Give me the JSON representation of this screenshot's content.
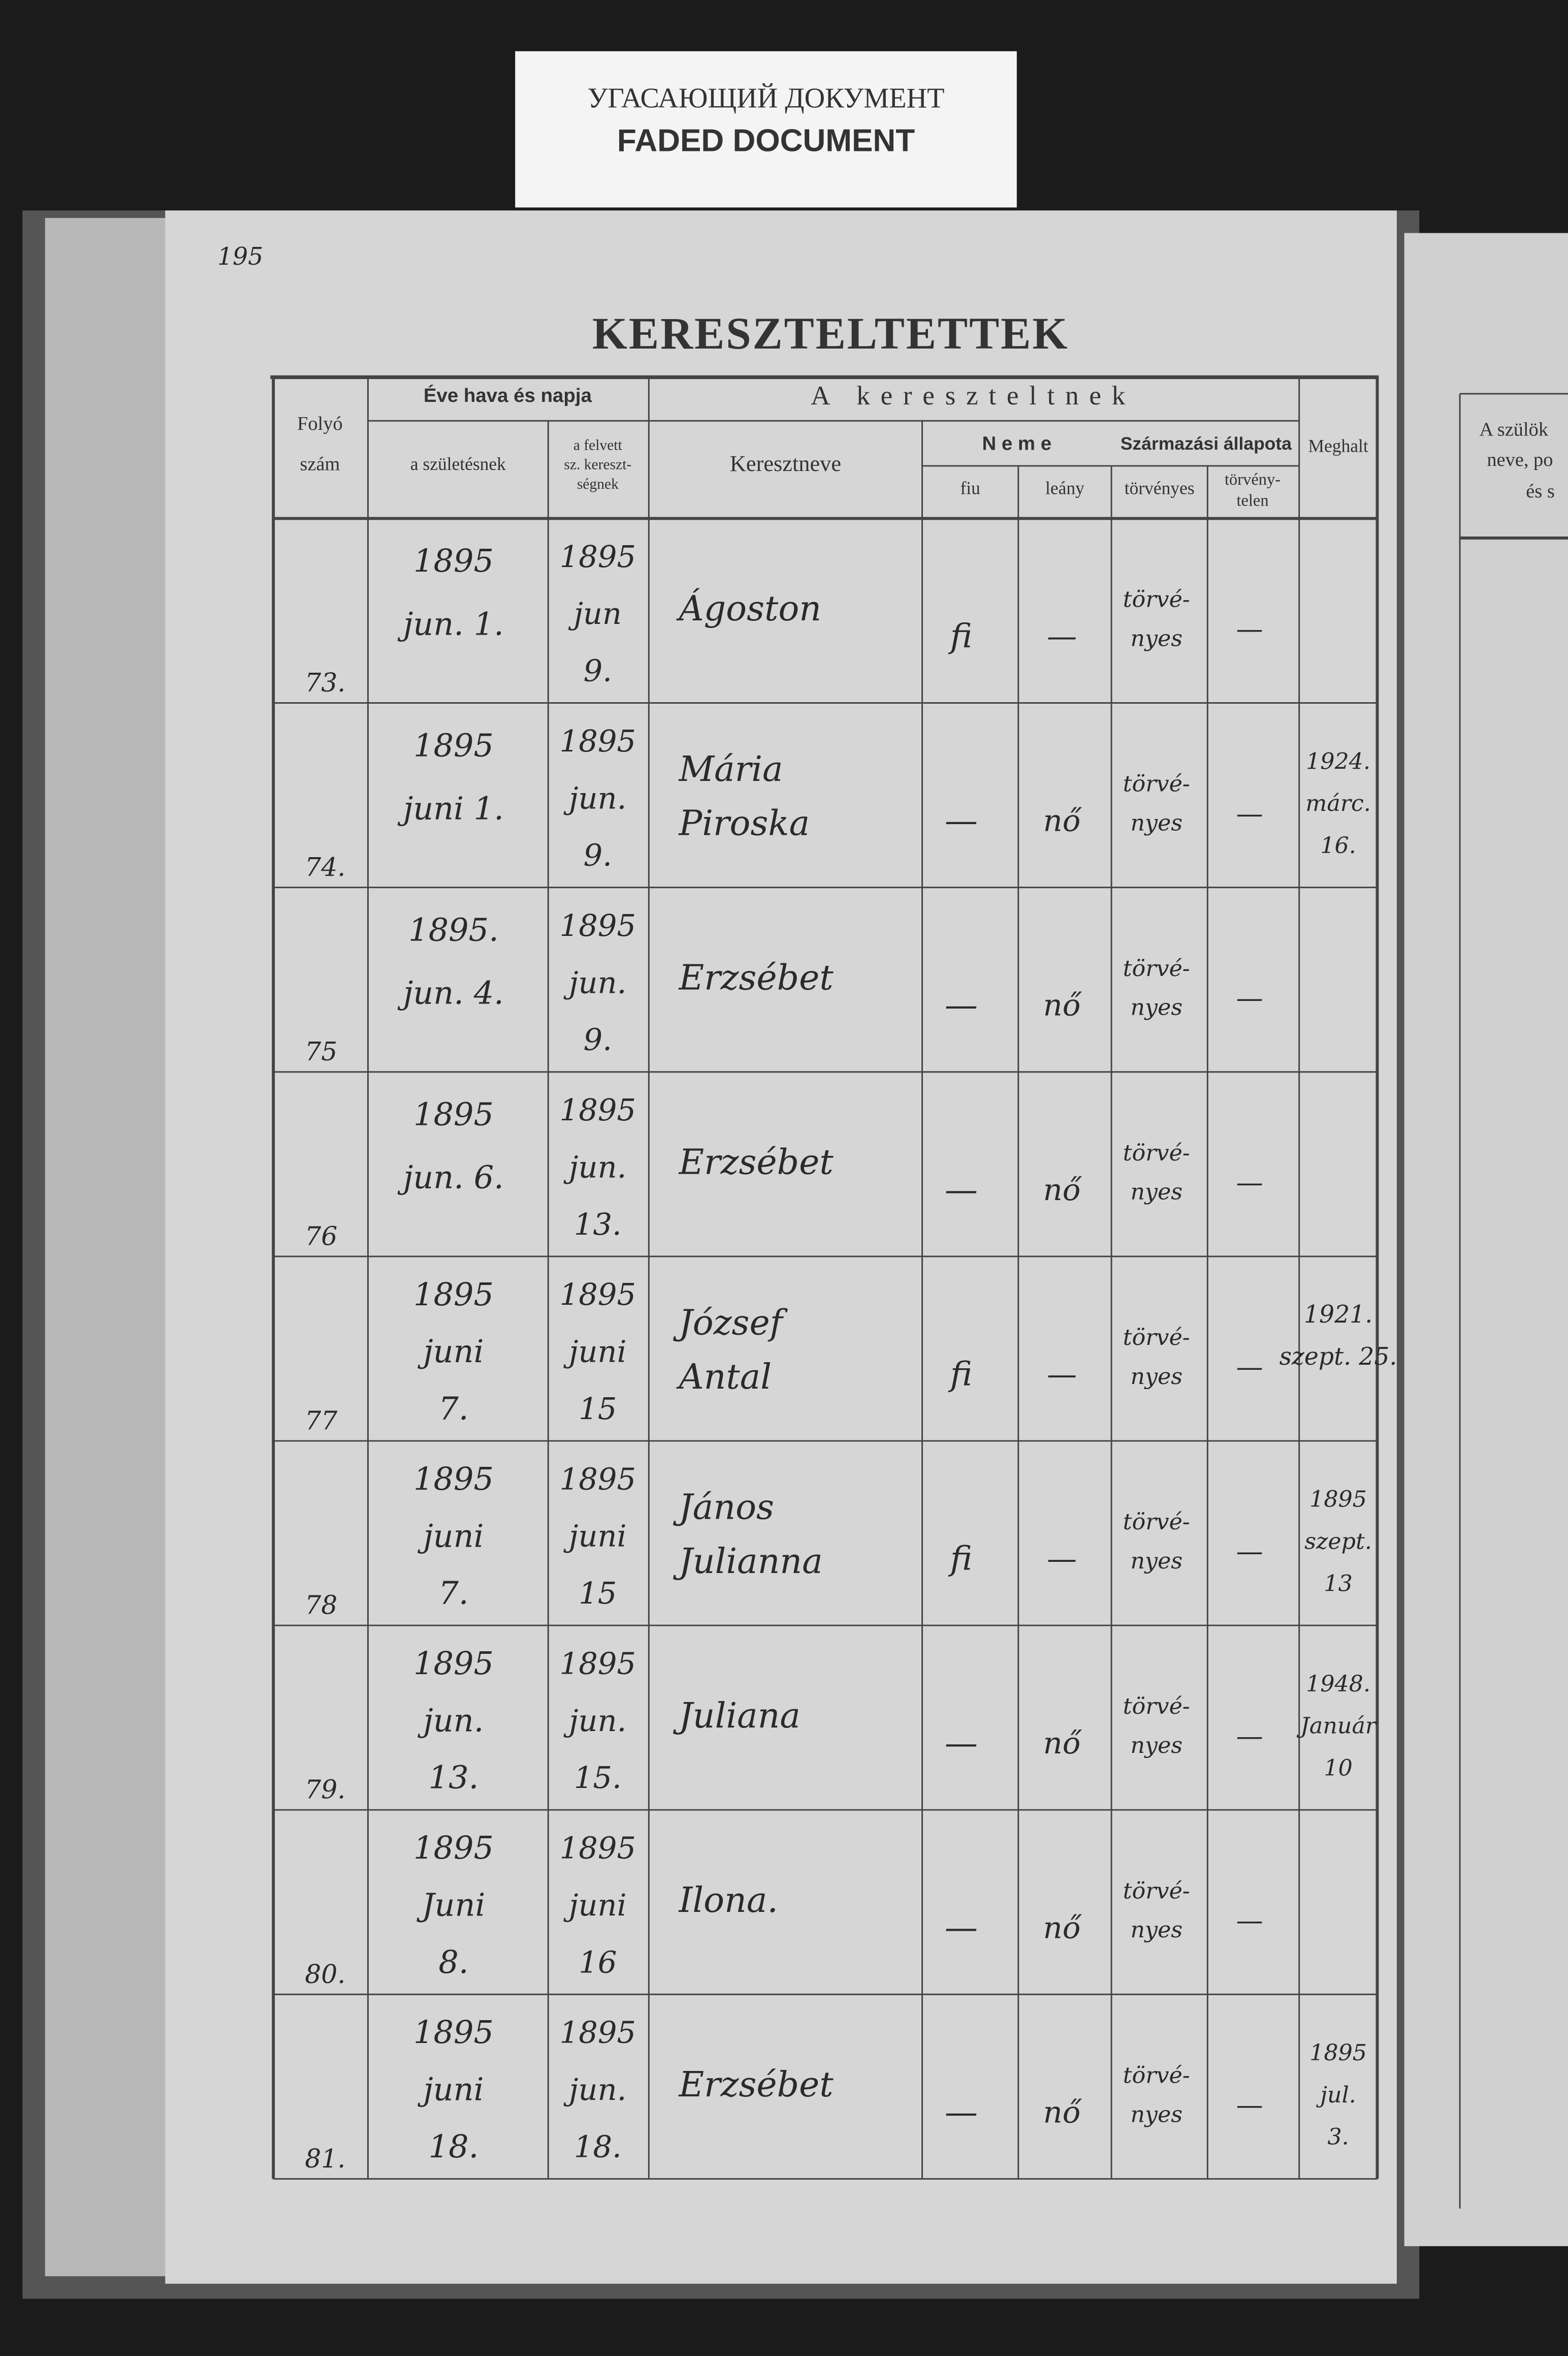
{
  "label": {
    "line1": "УГАСАЮЩИЙ ДОКУМЕНТ",
    "line2": "FADED DOCUMENT"
  },
  "page_number": "195",
  "title": "KERESZTELTETTEK",
  "table": {
    "headers": {
      "folyo": "Folyó",
      "szam": "szám",
      "date_group": "Éve hava és napja",
      "born": "a születésnek",
      "baptized": [
        "a felvett",
        "sz. kereszt-",
        "ségnek"
      ],
      "group": "A kereszteltnek",
      "name": "Keresztneve",
      "sex": "N e m e",
      "male": "fiu",
      "female": "leány",
      "status": "Származási állapota",
      "legit": "törvényes",
      "illegit": [
        "törvény-",
        "telen"
      ],
      "died": "Meghalt"
    },
    "rows": [
      {
        "number": "73.",
        "born": [
          "1895",
          "jun. 1."
        ],
        "baptized": [
          "1895",
          "jun",
          "9."
        ],
        "name": [
          "Ágoston"
        ],
        "male": "fi",
        "female": "—",
        "legit": [
          "törvé-",
          "nyes"
        ],
        "illegit": "—",
        "died": null
      },
      {
        "number": "74.",
        "born": [
          "1895",
          "juni 1."
        ],
        "baptized": [
          "1895",
          "jun.",
          "9."
        ],
        "name": [
          "Mária",
          "Piroska"
        ],
        "male": "—",
        "female": "nő",
        "legit": [
          "törvé-",
          "nyes"
        ],
        "illegit": "—",
        "died": [
          "1924.",
          "márc.",
          "16."
        ]
      },
      {
        "number": "75",
        "born": [
          "1895.",
          "jun. 4."
        ],
        "baptized": [
          "1895",
          "jun.",
          "9."
        ],
        "name": [
          "Erzsébet"
        ],
        "male": "—",
        "female": "nő",
        "legit": [
          "törvé-",
          "nyes"
        ],
        "illegit": "—",
        "died": null
      },
      {
        "number": "76",
        "born": [
          "1895",
          "jun. 6."
        ],
        "baptized": [
          "1895",
          "jun.",
          "13."
        ],
        "name": [
          "Erzsébet"
        ],
        "male": "—",
        "female": "nő",
        "legit": [
          "törvé-",
          "nyes"
        ],
        "illegit": "—",
        "died": null
      },
      {
        "number": "77",
        "born": [
          "1895",
          "juni",
          "7."
        ],
        "baptized": [
          "1895",
          "juni",
          "15"
        ],
        "name": [
          "József",
          "Antal"
        ],
        "male": "fi",
        "female": "—",
        "legit": [
          "törvé-",
          "nyes"
        ],
        "illegit": "—",
        "died": [
          "1921.",
          "szept. 25."
        ]
      },
      {
        "number": "78",
        "born": [
          "1895",
          "juni",
          "7."
        ],
        "baptized": [
          "1895",
          "juni",
          "15"
        ],
        "name": [
          "János",
          "Julianna"
        ],
        "male": "fi",
        "female": "—",
        "legit": [
          "törvé-",
          "nyes"
        ],
        "illegit": "—",
        "died": [
          "1895",
          "szept.",
          "13"
        ]
      },
      {
        "number": "79.",
        "born": [
          "1895",
          "jun.",
          "13."
        ],
        "baptized": [
          "1895",
          "jun.",
          "15."
        ],
        "name": [
          "Juliana"
        ],
        "male": "—",
        "female": "nő",
        "legit": [
          "törvé-",
          "nyes"
        ],
        "illegit": "—",
        "died": [
          "1948.",
          "Január",
          "10"
        ]
      },
      {
        "number": "80.",
        "born": [
          "1895",
          "Juni",
          "8."
        ],
        "baptized": [
          "1895",
          "juni",
          "16"
        ],
        "name": [
          "Ilona."
        ],
        "male": "—",
        "female": "nő",
        "legit": [
          "törvé-",
          "nyes"
        ],
        "illegit": "—",
        "died": null
      },
      {
        "number": "81.",
        "born": [
          "1895",
          "juni",
          "18."
        ],
        "baptized": [
          "1895",
          "jun.",
          "18."
        ],
        "name": [
          "Erzsébet"
        ],
        "male": "—",
        "female": "nő",
        "legit": [
          "törvé-",
          "nyes"
        ],
        "illegit": "—",
        "died": [
          "1895",
          "jul.",
          "3."
        ]
      }
    ]
  },
  "right_page": {
    "header": [
      "A szülök",
      "neve, po",
      "és s"
    ]
  }
}
